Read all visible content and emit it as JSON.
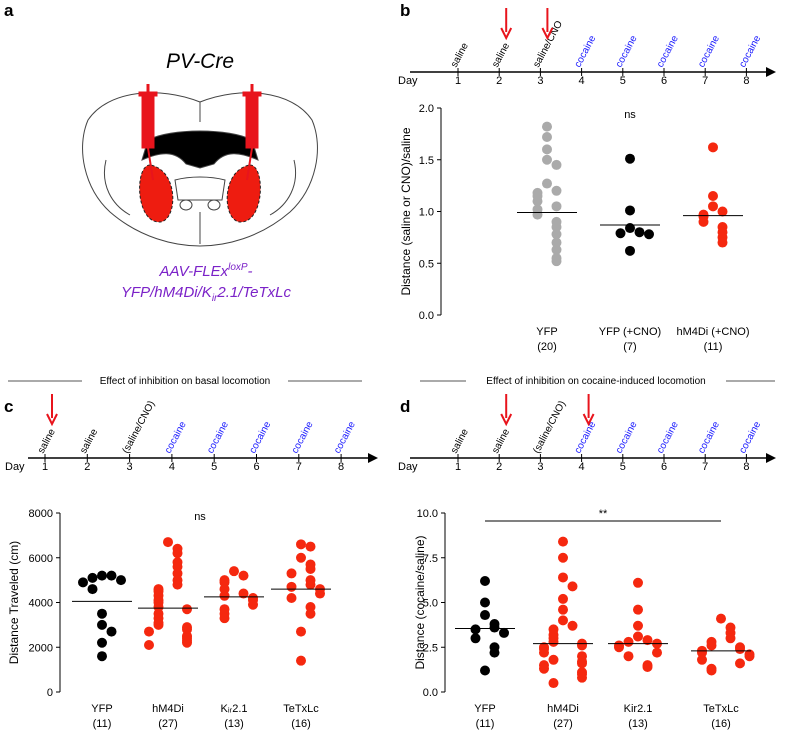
{
  "figure": {
    "panel_a": {
      "label": "a",
      "title": "PV-Cre",
      "virus_1": "AAV-FLEx",
      "virus_sup": "loxP",
      "virus_dash": "-",
      "virus_2a": "YFP/hM4Di/K",
      "virus_sub": "ir",
      "virus_2b": "2.1/TeTxLc"
    },
    "sections": [
      "Effect of inhibition on basal locomotion",
      "Effect of inhibition on cocaine-induced locomotion"
    ]
  },
  "chart_data": [
    {
      "type": "strip",
      "panel": "b",
      "timeline": {
        "day_label": "Day",
        "days": [
          1,
          2,
          3,
          4,
          5,
          6,
          7,
          8
        ],
        "treatments": [
          "saline",
          "saline",
          "saline/CNO",
          "cocaine",
          "cocaine",
          "cocaine",
          "cocaine",
          "cocaine"
        ],
        "arrows_at_days": [
          2,
          3
        ],
        "saline_color": "#000000",
        "cocaine_color": "#1a1aff",
        "arrow_color": "#e8141c"
      },
      "ylabel": "Distance (saline or CNO)/saline",
      "ylim": [
        0,
        2
      ],
      "yticks": [
        {
          "value": 0,
          "label": "0.0"
        },
        {
          "value": 0.5,
          "label": "0.5"
        },
        {
          "value": 1,
          "label": "1.0"
        },
        {
          "value": 1.5,
          "label": "1.5"
        },
        {
          "value": 2,
          "label": "2.0"
        }
      ],
      "categories": [
        "YFP",
        "YFP (+CNO)",
        "hM4Di (+CNO)"
      ],
      "n_labels": [
        "(20)",
        "(7)",
        "(11)"
      ],
      "annotation": "ns",
      "groups": [
        {
          "color": "#aaaaaa",
          "mean": 0.99,
          "values": [
            1.82,
            1.72,
            1.6,
            1.5,
            1.45,
            1.27,
            1.2,
            1.18,
            1.15,
            1.1,
            1.05,
            1.02,
            0.97,
            0.9,
            0.85,
            0.78,
            0.7,
            0.63,
            0.55,
            0.52
          ]
        },
        {
          "color": "#000000",
          "mean": 0.87,
          "values": [
            1.51,
            1.01,
            0.84,
            0.8,
            0.79,
            0.78,
            0.62
          ]
        },
        {
          "color": "#f5280f",
          "mean": 0.96,
          "values": [
            1.62,
            1.15,
            1.05,
            1.0,
            0.97,
            0.95,
            0.9,
            0.85,
            0.8,
            0.75,
            0.7
          ]
        }
      ]
    },
    {
      "type": "strip",
      "panel": "c",
      "timeline": {
        "day_label": "Day",
        "days": [
          1,
          2,
          3,
          4,
          5,
          6,
          7,
          8
        ],
        "treatments": [
          "saline",
          "saline",
          "(saline/CNO)",
          "cocaine",
          "cocaine",
          "cocaine",
          "cocaine",
          "cocaine"
        ],
        "arrows_at_days": [
          1
        ],
        "saline_color": "#000000",
        "cocaine_color": "#1a1aff",
        "arrow_color": "#e8141c"
      },
      "ylabel": "Distance Traveled (cm)",
      "ylim": [
        0,
        8000
      ],
      "yticks": [
        0,
        2000,
        4000,
        6000,
        8000
      ],
      "categories": [
        "YFP",
        "hM4Di",
        "Kᵢᵣ2.1",
        "TeTxLc"
      ],
      "n_labels": [
        "(11)",
        "(27)",
        "(13)",
        "(16)"
      ],
      "annotation": "ns",
      "groups": [
        {
          "color": "#000000",
          "mean": 4050,
          "values": [
            5200,
            5200,
            5100,
            5000,
            4900,
            4600,
            3500,
            3000,
            2700,
            2200,
            1600
          ]
        },
        {
          "color": "#f5280f",
          "mean": 3750,
          "values": [
            6700,
            6400,
            6200,
            5800,
            5600,
            5300,
            5000,
            4800,
            4600,
            4500,
            4300,
            4100,
            4000,
            3800,
            3700,
            3500,
            3300,
            3100,
            3000,
            2900,
            2800,
            2700,
            2500,
            2400,
            2300,
            2200,
            2100
          ]
        },
        {
          "color": "#f5280f",
          "mean": 4250,
          "values": [
            5400,
            5200,
            5000,
            4900,
            4600,
            4400,
            4300,
            4200,
            4100,
            3900,
            3700,
            3500,
            3300
          ]
        },
        {
          "color": "#f5280f",
          "mean": 4600,
          "values": [
            6600,
            6500,
            6000,
            5700,
            5500,
            5300,
            5000,
            4800,
            4700,
            4600,
            4400,
            4200,
            3800,
            3500,
            2700,
            1400
          ]
        }
      ]
    },
    {
      "type": "strip",
      "panel": "d",
      "timeline": {
        "day_label": "Day",
        "days": [
          1,
          2,
          3,
          4,
          5,
          6,
          7,
          8
        ],
        "treatments": [
          "saline",
          "saline",
          "(saline/CNO)",
          "cocaine",
          "cocaine",
          "cocaine",
          "cocaine",
          "cocaine"
        ],
        "arrows_at_days": [
          2,
          4
        ],
        "saline_color": "#000000",
        "cocaine_color": "#1a1aff",
        "arrow_color": "#e8141c"
      },
      "ylabel": "Distance (cocaine/saline)",
      "ylim": [
        0,
        10
      ],
      "yticks": [
        {
          "value": 0,
          "label": "0.0"
        },
        {
          "value": 2.5,
          "label": "2.5"
        },
        {
          "value": 5,
          "label": "5.0"
        },
        {
          "value": 7.5,
          "label": "7.5"
        },
        {
          "value": 10,
          "label": "10.0"
        }
      ],
      "categories": [
        "YFP",
        "hM4Di",
        "Kir2.1",
        "TeTxLc"
      ],
      "n_labels": [
        "(11)",
        "(27)",
        "(13)",
        "(16)"
      ],
      "annotation": "**",
      "bracket": true,
      "groups": [
        {
          "color": "#000000",
          "mean": 3.55,
          "values": [
            6.2,
            5.0,
            4.3,
            3.8,
            3.6,
            3.5,
            3.3,
            3.0,
            2.5,
            2.2,
            1.2
          ]
        },
        {
          "color": "#f5280f",
          "mean": 2.7,
          "values": [
            8.4,
            7.5,
            6.4,
            5.9,
            5.2,
            4.6,
            4.0,
            3.7,
            3.5,
            3.2,
            3.0,
            2.8,
            2.7,
            2.6,
            2.5,
            2.4,
            2.2,
            2.0,
            1.8,
            1.7,
            1.6,
            1.5,
            1.3,
            1.1,
            1.0,
            0.8,
            0.5
          ]
        },
        {
          "color": "#f5280f",
          "mean": 2.7,
          "values": [
            6.1,
            4.6,
            3.7,
            3.1,
            2.9,
            2.8,
            2.7,
            2.6,
            2.5,
            2.2,
            2.0,
            1.5,
            1.4
          ]
        },
        {
          "color": "#f5280f",
          "mean": 2.3,
          "values": [
            4.1,
            3.6,
            3.3,
            3.0,
            2.8,
            2.6,
            2.5,
            2.4,
            2.3,
            2.2,
            2.1,
            2.0,
            1.8,
            1.6,
            1.3,
            1.2
          ]
        }
      ]
    }
  ]
}
